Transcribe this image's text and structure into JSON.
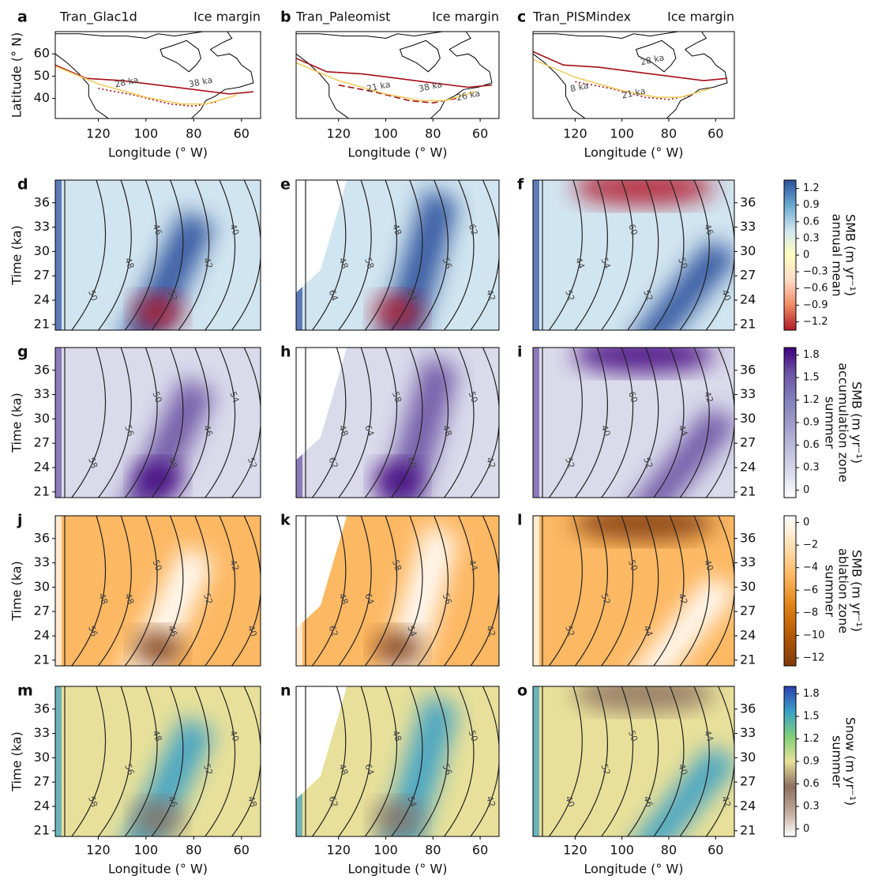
{
  "panels": [
    {
      "letter": "a",
      "title": "Tran_Glac1d",
      "subtitle": "Ice margin",
      "margin_labels": [
        "28 ka",
        "38 ka"
      ]
    },
    {
      "letter": "b",
      "title": "Tran_Paleomist",
      "subtitle": "Ice margin",
      "margin_labels": [
        "21 ka",
        "38 ka",
        "26 ka"
      ]
    },
    {
      "letter": "c",
      "title": "Tran_PISMindex",
      "subtitle": "Ice margin",
      "margin_labels": [
        "28 ka",
        "8 ka",
        "21 ka"
      ]
    }
  ],
  "map_axes": {
    "xlabel": "Longitude (° W)",
    "ylabel": "Latitude (° N)",
    "xlim": [
      138,
      52
    ],
    "ylim": [
      31,
      70
    ],
    "xticks": [
      120,
      100,
      80,
      60
    ],
    "yticks": [
      40,
      50,
      60
    ]
  },
  "heat_axes": {
    "xlabel": "Longitude (° W)",
    "ylabel": "Time (ka)",
    "xlim": [
      138,
      52
    ],
    "ylim": [
      20.3,
      38.8
    ],
    "xticks": [
      120,
      100,
      80,
      60
    ],
    "yticks": [
      21,
      24,
      27,
      30,
      33,
      36
    ]
  },
  "rows": [
    {
      "letters": [
        "d",
        "e",
        "f"
      ],
      "contour_labels": [
        [
          50,
          48,
          46,
          52,
          42,
          40
        ],
        [
          64,
          58,
          48,
          54,
          56,
          62,
          42,
          48
        ],
        [
          52,
          54,
          60,
          52,
          50,
          46,
          40,
          44
        ]
      ],
      "colorbar": {
        "label": [
          "SMB (m yr⁻¹)",
          "annual mean"
        ],
        "lim": [
          -1.35,
          1.35
        ],
        "colors": [
          "#b2182b",
          "#ef8a62",
          "#fddbc7",
          "#ffffbf",
          "#d1e5f0",
          "#67a9cf",
          "#2c4f9b"
        ],
        "ticks": [
          1.2,
          0.9,
          0.6,
          0.3,
          0,
          {
            "value": -0.3,
            "label": "−0.3"
          },
          {
            "value": -0.6,
            "label": "−0.6"
          },
          {
            "value": -0.9,
            "label": "−0.9"
          },
          {
            "value": -1.2,
            "label": "−1.2"
          }
        ]
      }
    },
    {
      "letters": [
        "g",
        "h",
        "i"
      ],
      "contour_labels": [
        [
          58,
          56,
          50,
          48,
          46,
          54,
          52
        ],
        [
          62,
          64,
          58,
          60,
          48,
          50,
          42,
          48
        ],
        [
          52,
          40,
          60,
          52,
          44,
          42
        ]
      ],
      "colorbar": {
        "label": [
          "SMB (m yr⁻¹)",
          "accumulation zone",
          "summer"
        ],
        "lim": [
          -0.1,
          1.9
        ],
        "colors": [
          "#ffffff",
          "#dadaeb",
          "#bcbddc",
          "#9e9ac8",
          "#807dba",
          "#6a51a3",
          "#3f007d"
        ],
        "ticks": [
          1.8,
          1.5,
          1.2,
          0.9,
          0.6,
          0.3,
          0
        ]
      }
    },
    {
      "letters": [
        "j",
        "k",
        "l"
      ],
      "contour_labels": [
        [
          56,
          48,
          50,
          46,
          52,
          42,
          40,
          48
        ],
        [
          62,
          64,
          58,
          54,
          56,
          44,
          42,
          48
        ],
        [
          52,
          52,
          50,
          44,
          42,
          40
        ]
      ],
      "colorbar": {
        "label": [
          "SMB (m yr⁻¹)",
          "ablation zone",
          "summer"
        ],
        "lim": [
          -12.7,
          0.6
        ],
        "colors": [
          "#7f3b08",
          "#b35806",
          "#e08214",
          "#fdb863",
          "#fee0b6",
          "#ffffff"
        ],
        "ticks": [
          0,
          {
            "value": -2,
            "label": "−2"
          },
          {
            "value": -4,
            "label": "−4"
          },
          {
            "value": -6,
            "label": "−6"
          },
          {
            "value": -8,
            "label": "−8"
          },
          {
            "value": -10,
            "label": "−10"
          },
          {
            "value": -12,
            "label": "−12"
          }
        ]
      }
    },
    {
      "letters": [
        "m",
        "n",
        "o"
      ],
      "contour_labels": [
        [
          58,
          56,
          48,
          46,
          52,
          40,
          48
        ],
        [
          62,
          64,
          48,
          54,
          56,
          50,
          42,
          48
        ],
        [
          40,
          52,
          50,
          46,
          40,
          44,
          42
        ]
      ],
      "colorbar": {
        "label": [
          "Snow (m yr⁻¹)",
          "summer"
        ],
        "lim": [
          -0.1,
          1.9
        ],
        "colors": [
          "#ffffff",
          "#bfa89a",
          "#8c7060",
          "#e8e09a",
          "#7fd07a",
          "#3aa0c8",
          "#2c3fb0"
        ],
        "ticks": [
          1.8,
          1.5,
          1.2,
          0.9,
          0.6,
          0.3,
          0
        ]
      }
    }
  ]
}
